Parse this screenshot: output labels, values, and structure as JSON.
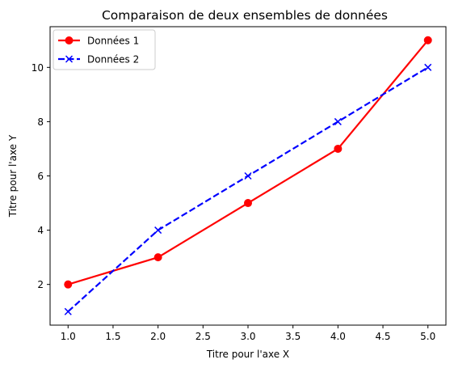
{
  "chart_data": {
    "type": "line",
    "title": "Comparaison de deux ensembles de données",
    "xlabel": "Titre pour l'axe X",
    "ylabel": "Titre pour l'axe Y",
    "xlim": [
      0.8,
      5.2
    ],
    "ylim": [
      0.5,
      11.5
    ],
    "x_ticks": [
      1.0,
      1.5,
      2.0,
      2.5,
      3.0,
      3.5,
      4.0,
      4.5,
      5.0
    ],
    "y_ticks": [
      2,
      4,
      6,
      8,
      10
    ],
    "grid": false,
    "legend_position": "top-left",
    "series": [
      {
        "name": "Données 1",
        "x": [
          1,
          2,
          3,
          4,
          5
        ],
        "y": [
          2,
          3,
          5,
          7,
          11
        ],
        "color": "#ff0000",
        "line_style": "solid",
        "marker": "circle"
      },
      {
        "name": "Données 2",
        "x": [
          1,
          2,
          3,
          4,
          5
        ],
        "y": [
          1,
          4,
          6,
          8,
          10
        ],
        "color": "#0000ff",
        "line_style": "dashed",
        "marker": "x"
      }
    ]
  }
}
